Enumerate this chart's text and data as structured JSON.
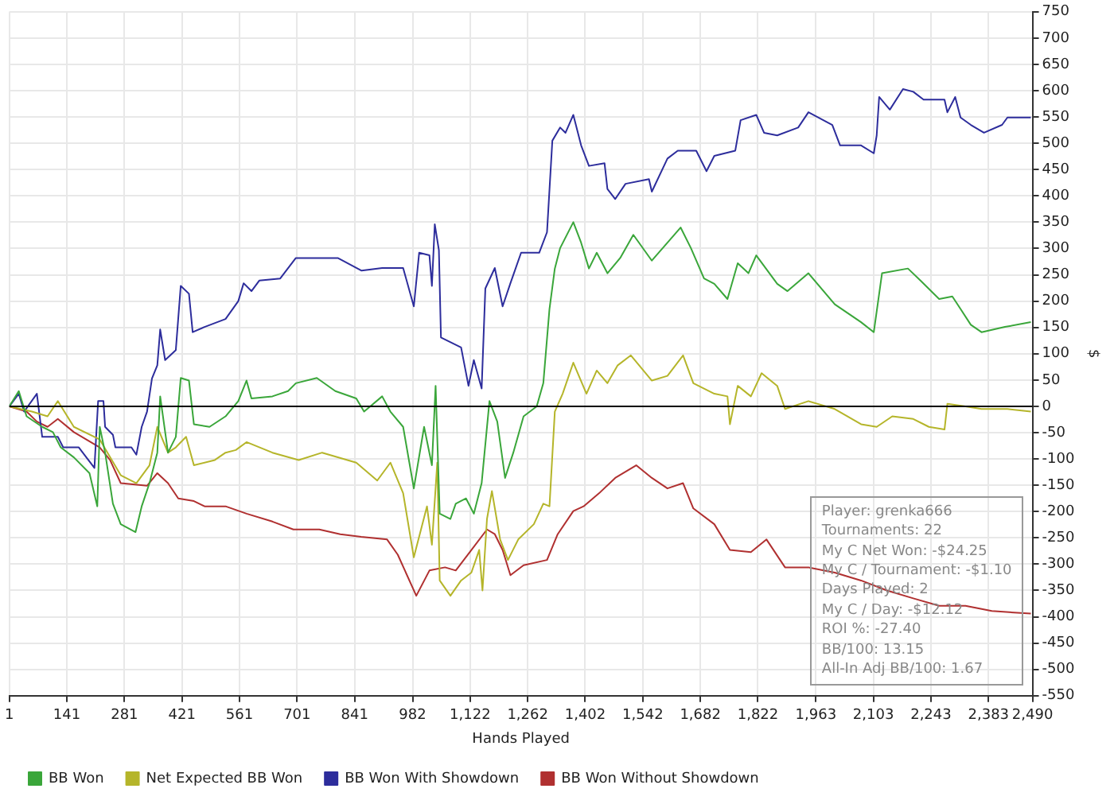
{
  "chart_data": {
    "type": "line",
    "xlabel": "Hands Played",
    "ylabel": "$",
    "xlim": [
      1,
      2490
    ],
    "xticks": [
      1,
      141,
      281,
      421,
      561,
      701,
      841,
      982,
      {
        "value": 1122,
        "label": "1,122"
      },
      {
        "value": 1262,
        "label": "1,262"
      },
      {
        "value": 1402,
        "label": "1,402"
      },
      {
        "value": 1542,
        "label": "1,542"
      },
      {
        "value": 1682,
        "label": "1,682"
      },
      {
        "value": 1822,
        "label": "1,822"
      },
      {
        "value": 1963,
        "label": "1,963"
      },
      {
        "value": 2103,
        "label": "2,103"
      },
      {
        "value": 2243,
        "label": "2,243"
      },
      {
        "value": 2383,
        "label": "2,383"
      },
      {
        "value": 2490,
        "label": "2,490"
      }
    ],
    "ylim": [
      -550,
      750
    ],
    "yticks": [
      -550,
      -500,
      -450,
      -400,
      -350,
      -300,
      -250,
      -200,
      -150,
      -100,
      -50,
      0,
      50,
      100,
      150,
      200,
      250,
      300,
      350,
      400,
      450,
      500,
      550,
      600,
      650,
      700,
      750
    ],
    "grid": true,
    "legend": "bottom left",
    "marker": "none",
    "line_style": "solid",
    "ref_lines": [
      {
        "axis": "y",
        "value": 0,
        "color": "#000000"
      }
    ],
    "annotations": [
      "Player: grenka666",
      "Tournaments: 22",
      "My C Net Won: -$24.25",
      "My C / Tournament: -$1.10",
      "Days Played: 2",
      "My C / Day: -$12.12",
      "ROI %: -27.40",
      "BB/100: 13.15",
      "All-In Adj BB/100: 1.67"
    ],
    "series": [
      {
        "name": "BB Won",
        "color": "#3aa63a",
        "x": [
          1,
          24,
          43,
          81,
          107,
          126,
          158,
          196,
          215,
          221,
          234,
          253,
          272,
          308,
          323,
          342,
          361,
          368,
          387,
          406,
          418,
          438,
          450,
          488,
          527,
          558,
          578,
          590,
          641,
          679,
          698,
          749,
          794,
          845,
          864,
          908,
          928,
          959,
          985,
          1010,
          1029,
          1038,
          1048,
          1074,
          1087,
          1112,
          1131,
          1150,
          1169,
          1188,
          1207,
          1227,
          1252,
          1284,
          1300,
          1315,
          1328,
          1341,
          1373,
          1392,
          1411,
          1430,
          1456,
          1487,
          1519,
          1564,
          1602,
          1634,
          1659,
          1691,
          1716,
          1748,
          1773,
          1799,
          1818,
          1869,
          1894,
          1945,
          2009,
          2073,
          2104,
          2124,
          2187,
          2219,
          2263,
          2295,
          2315,
          2340,
          2366,
          2423,
          2486
        ],
        "values": [
          0,
          29,
          -19,
          -39,
          -49,
          -78,
          -97,
          -127,
          -190,
          -39,
          -88,
          -185,
          -224,
          -239,
          -190,
          -146,
          -88,
          19,
          -88,
          -58,
          54,
          49,
          -34,
          -39,
          -19,
          10,
          49,
          15,
          19,
          29,
          44,
          54,
          29,
          15,
          -10,
          19,
          -10,
          -39,
          -156,
          -39,
          -112,
          39,
          -204,
          -214,
          -185,
          -175,
          -204,
          -146,
          10,
          -29,
          -136,
          -88,
          -19,
          0,
          44,
          185,
          262,
          301,
          350,
          311,
          262,
          292,
          253,
          282,
          326,
          277,
          311,
          340,
          301,
          243,
          233,
          204,
          272,
          253,
          287,
          233,
          219,
          253,
          194,
          160,
          141,
          253,
          262,
          238,
          204,
          209,
          185,
          155,
          141,
          151,
          160
        ]
      },
      {
        "name": "Net Expected BB Won",
        "color": "#b5b52a",
        "x": [
          1,
          56,
          94,
          119,
          158,
          221,
          272,
          310,
          342,
          361,
          387,
          406,
          431,
          450,
          501,
          527,
          552,
          578,
          641,
          705,
          762,
          845,
          896,
          928,
          959,
          985,
          1017,
          1029,
          1042,
          1048,
          1074,
          1100,
          1125,
          1144,
          1152,
          1163,
          1175,
          1195,
          1214,
          1239,
          1277,
          1300,
          1315,
          1328,
          1347,
          1373,
          1405,
          1430,
          1456,
          1481,
          1513,
          1564,
          1602,
          1640,
          1665,
          1716,
          1748,
          1754,
          1773,
          1805,
          1831,
          1869,
          1888,
          1945,
          2009,
          2073,
          2111,
          2149,
          2200,
          2238,
          2276,
          2283,
          2327,
          2366,
          2429,
          2486
        ],
        "values": [
          0,
          -10,
          -19,
          10,
          -39,
          -63,
          -131,
          -146,
          -112,
          -39,
          -88,
          -78,
          -58,
          -112,
          -102,
          -88,
          -83,
          -68,
          -88,
          -102,
          -88,
          -107,
          -141,
          -107,
          -165,
          -287,
          -190,
          -263,
          -107,
          -331,
          -360,
          -331,
          -316,
          -273,
          -350,
          -214,
          -161,
          -253,
          -292,
          -253,
          -224,
          -185,
          -190,
          -10,
          24,
          83,
          24,
          68,
          44,
          78,
          97,
          49,
          58,
          97,
          44,
          24,
          19,
          -34,
          39,
          19,
          63,
          39,
          -5,
          10,
          -5,
          -34,
          -39,
          -19,
          -24,
          -39,
          -44,
          5,
          0,
          -5,
          -5,
          -10
        ]
      },
      {
        "name": "BB Won With Showdown",
        "color": "#2d2d9c",
        "x": [
          1,
          24,
          37,
          68,
          81,
          119,
          132,
          170,
          208,
          217,
          230,
          234,
          253,
          259,
          298,
          310,
          323,
          336,
          348,
          361,
          368,
          380,
          406,
          418,
          438,
          447,
          476,
          527,
          558,
          571,
          590,
          609,
          660,
          698,
          800,
          858,
          908,
          959,
          985,
          998,
          1023,
          1029,
          1036,
          1046,
          1051,
          1100,
          1118,
          1131,
          1150,
          1159,
          1182,
          1201,
          1220,
          1246,
          1290,
          1309,
          1322,
          1341,
          1354,
          1373,
          1392,
          1411,
          1449,
          1456,
          1475,
          1500,
          1557,
          1564,
          1602,
          1627,
          1672,
          1697,
          1716,
          1767,
          1780,
          1818,
          1837,
          1869,
          1920,
          1945,
          2003,
          2022,
          2073,
          2104,
          2111,
          2117,
          2143,
          2175,
          2200,
          2225,
          2276,
          2283,
          2302,
          2315,
          2340,
          2372,
          2416,
          2429,
          2486
        ],
        "values": [
          0,
          24,
          -10,
          24,
          -58,
          -58,
          -78,
          -78,
          -117,
          10,
          10,
          -39,
          -54,
          -78,
          -78,
          -92,
          -39,
          -10,
          53,
          78,
          146,
          88,
          107,
          229,
          214,
          141,
          151,
          166,
          200,
          234,
          219,
          239,
          243,
          282,
          282,
          258,
          263,
          263,
          190,
          292,
          287,
          229,
          346,
          297,
          131,
          112,
          39,
          88,
          34,
          224,
          263,
          190,
          234,
          292,
          292,
          331,
          505,
          530,
          520,
          554,
          496,
          457,
          462,
          413,
          394,
          423,
          432,
          408,
          471,
          486,
          486,
          447,
          476,
          486,
          544,
          554,
          520,
          515,
          530,
          559,
          535,
          496,
          496,
          481,
          515,
          588,
          564,
          603,
          598,
          583,
          583,
          559,
          588,
          549,
          535,
          520,
          535,
          549,
          549
        ]
      },
      {
        "name": "BB Won Without Showdown",
        "color": "#b03030",
        "x": [
          1,
          43,
          68,
          94,
          119,
          158,
          221,
          246,
          272,
          336,
          361,
          387,
          412,
          450,
          476,
          527,
          578,
          641,
          692,
          755,
          806,
          857,
          920,
          946,
          991,
          1023,
          1061,
          1087,
          1125,
          1163,
          1182,
          1201,
          1220,
          1252,
          1309,
          1335,
          1373,
          1398,
          1436,
          1475,
          1526,
          1564,
          1602,
          1640,
          1665,
          1716,
          1754,
          1805,
          1843,
          1888,
          1945,
          2009,
          2073,
          2136,
          2200,
          2263,
          2327,
          2391,
          2486
        ],
        "values": [
          0,
          -10,
          -29,
          -39,
          -24,
          -49,
          -78,
          -102,
          -146,
          -151,
          -127,
          -146,
          -175,
          -180,
          -190,
          -190,
          -204,
          -219,
          -234,
          -234,
          -243,
          -248,
          -253,
          -282,
          -360,
          -312,
          -306,
          -312,
          -273,
          -234,
          -243,
          -273,
          -321,
          -302,
          -292,
          -243,
          -199,
          -190,
          -165,
          -136,
          -112,
          -136,
          -156,
          -146,
          -194,
          -224,
          -273,
          -277,
          -253,
          -306,
          -306,
          -316,
          -331,
          -350,
          -365,
          -379,
          -379,
          -389,
          -394
        ]
      }
    ]
  }
}
